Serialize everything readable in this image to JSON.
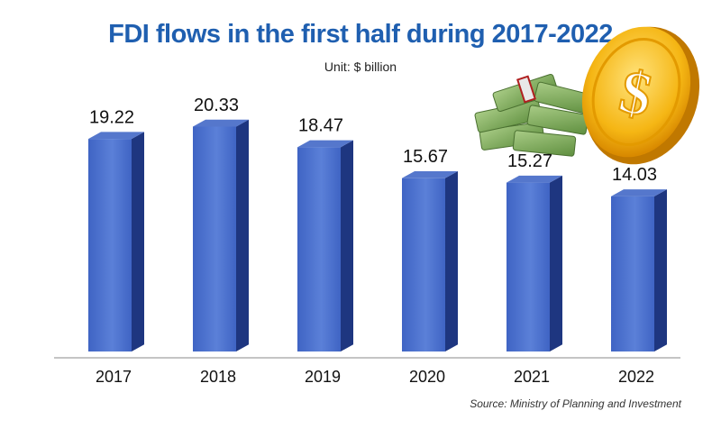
{
  "chart_data": {
    "type": "bar",
    "title": "FDI flows in the first half during 2017-2022",
    "subtitle": "Unit: $ billion",
    "categories": [
      "2017",
      "2018",
      "2019",
      "2020",
      "2021",
      "2022"
    ],
    "values": [
      19.22,
      20.33,
      18.47,
      15.67,
      15.27,
      14.03
    ],
    "ylim": [
      0,
      22
    ],
    "grid": false,
    "source": "Source: Ministry of Planning and Investment",
    "colors": {
      "bar_front": "#3f64c4",
      "bar_front_light": "#5b80d8",
      "bar_side": "#1e3680",
      "bar_top": "#5577cc",
      "title": "#1f5fb0"
    }
  }
}
